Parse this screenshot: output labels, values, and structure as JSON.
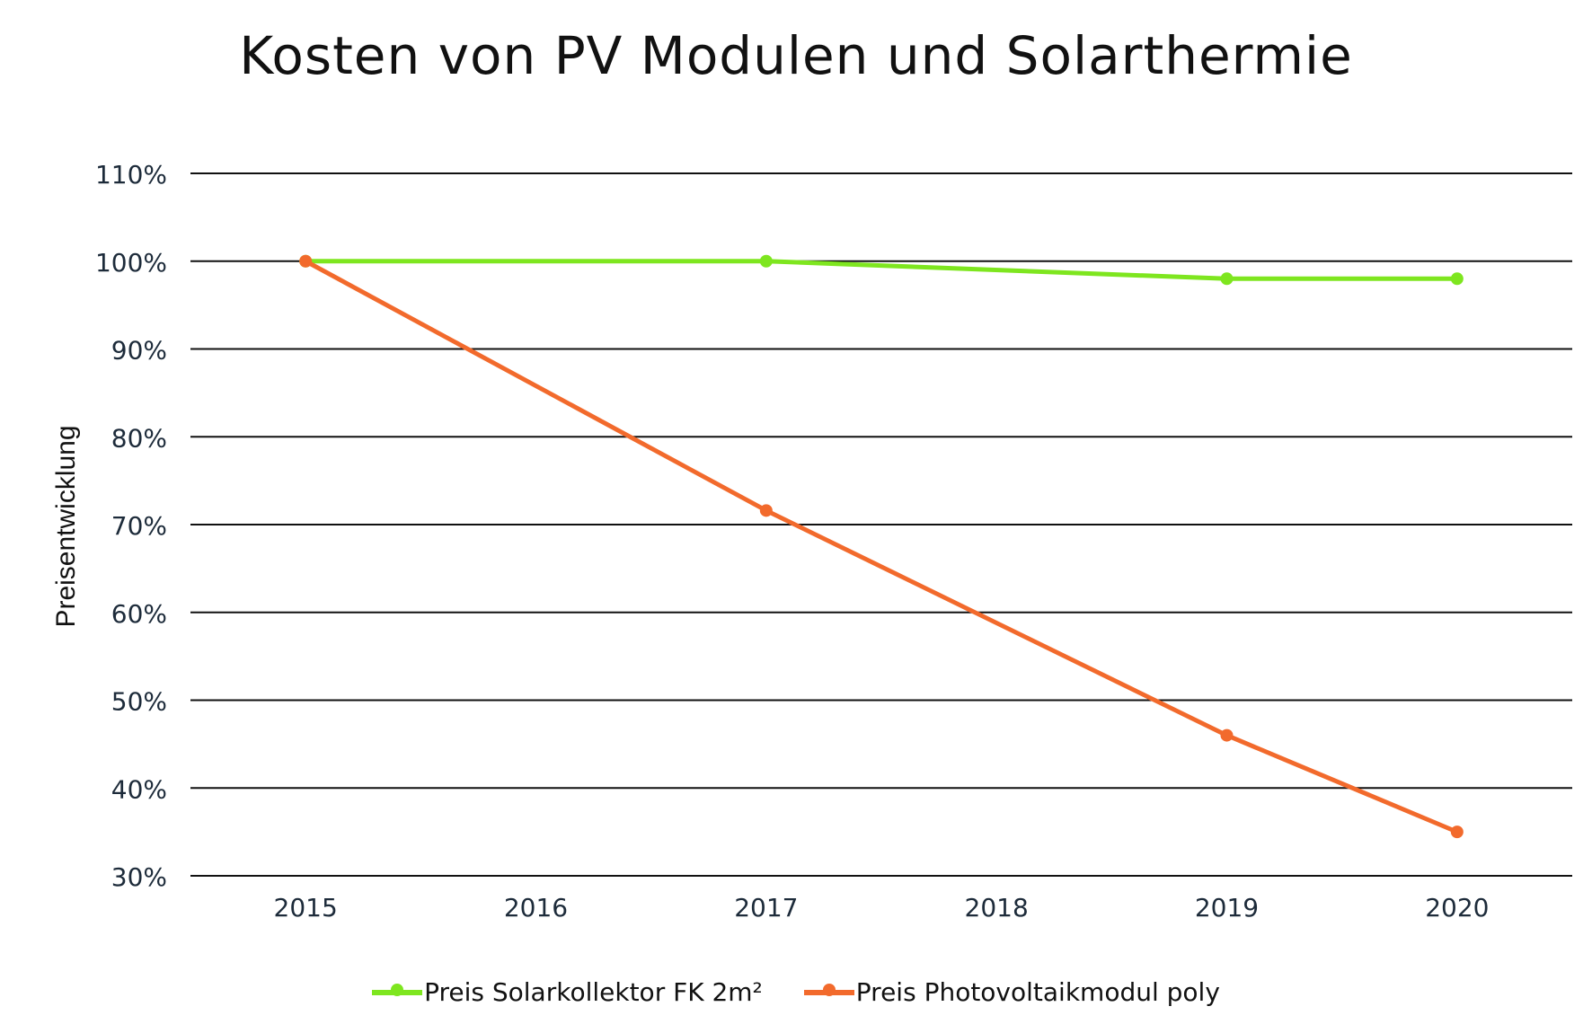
{
  "chart_data": {
    "type": "line",
    "title": "Kosten von PV Modulen und Solarthermie",
    "ylabel": "Preisentwicklung",
    "xlabel": "",
    "categories": [
      "2015",
      "2016",
      "2017",
      "2018",
      "2019",
      "2020"
    ],
    "ylim": [
      30,
      110
    ],
    "yticks": [
      30,
      40,
      50,
      60,
      70,
      80,
      90,
      100,
      110
    ],
    "ytick_labels": [
      "30%",
      "40%",
      "50%",
      "60%",
      "70%",
      "80%",
      "90%",
      "100%",
      "110%"
    ],
    "grid": true,
    "legend_position": "bottom-center",
    "series": [
      {
        "name": "Preis Solarkollektor FK 2m²",
        "color": "#7ee61f",
        "points": [
          {
            "x": "2015",
            "y": 100
          },
          {
            "x": "2017",
            "y": 100
          },
          {
            "x": "2019",
            "y": 98
          },
          {
            "x": "2020",
            "y": 98
          }
        ]
      },
      {
        "name": "Preis Photovoltaikmodul poly",
        "color": "#f26a2c",
        "points": [
          {
            "x": "2015",
            "y": 100
          },
          {
            "x": "2017",
            "y": 71.6
          },
          {
            "x": "2019",
            "y": 46
          },
          {
            "x": "2020",
            "y": 35
          }
        ]
      }
    ]
  }
}
